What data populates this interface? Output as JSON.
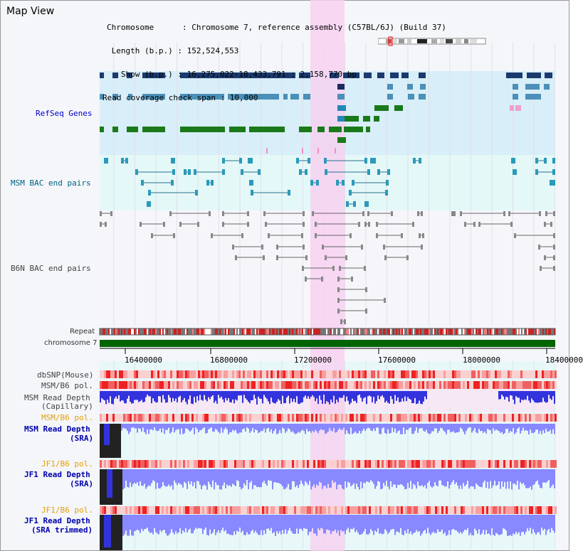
{
  "panel": {
    "title": "Map View"
  },
  "info": {
    "chromosome": "Chromosome      : Chromosome 7, reference assembly (C57BL/6J) (Build 37)",
    "length": " Length (b.p.) : 152,524,553",
    "show": "   Show (b.p.) : 16,275,022-18,433,791 : 2,158,770 bp",
    "coverage": "Read coverage check span : 10,000"
  },
  "tracks": {
    "refseq": "RefSeq Genes",
    "msm_bac": "MSM BAC end pairs",
    "b6n_bac": "B6N BAC end pairs",
    "repeat": "Repeat",
    "chromosome": "chromosome 7",
    "dbsnp": "dbSNP(Mouse)",
    "msm_b6_pol": "MSM/B6 pol.",
    "msm_read_depth_cap": "MSM Read Depth",
    "capillary": "(Capillary)",
    "msm_b6_pol2": "MSM/B6 pol.",
    "msm_read_depth_sra": "MSM Read Depth",
    "sra": "(SRA)",
    "jf1_b6_pol": "JF1/B6 pol.",
    "jf1_read_depth": "JF1 Read Depth",
    "sra2": "(SRA)",
    "jf1_b6_pol2": "JF1/B6 pol.",
    "jf1_read_depth2": "JF1 Read Depth",
    "sra_trimmed": "(SRA trimmed)"
  },
  "axis": {
    "ticks": [
      "16400000",
      "16800000",
      "17200000",
      "17600000",
      "18000000",
      "18400000"
    ]
  },
  "colors": {
    "refseq_bg": "#d8eef8",
    "msm_bg": "#e4f8f8",
    "highlight": "#f8d0f0",
    "gene_dark": "#1a3a6e",
    "gene_mid": "#4a90b8",
    "gene_green": "#1a7a1a",
    "chrom": "#006400",
    "depth_blue": "#3333dd",
    "depth_light": "#8888ff"
  }
}
